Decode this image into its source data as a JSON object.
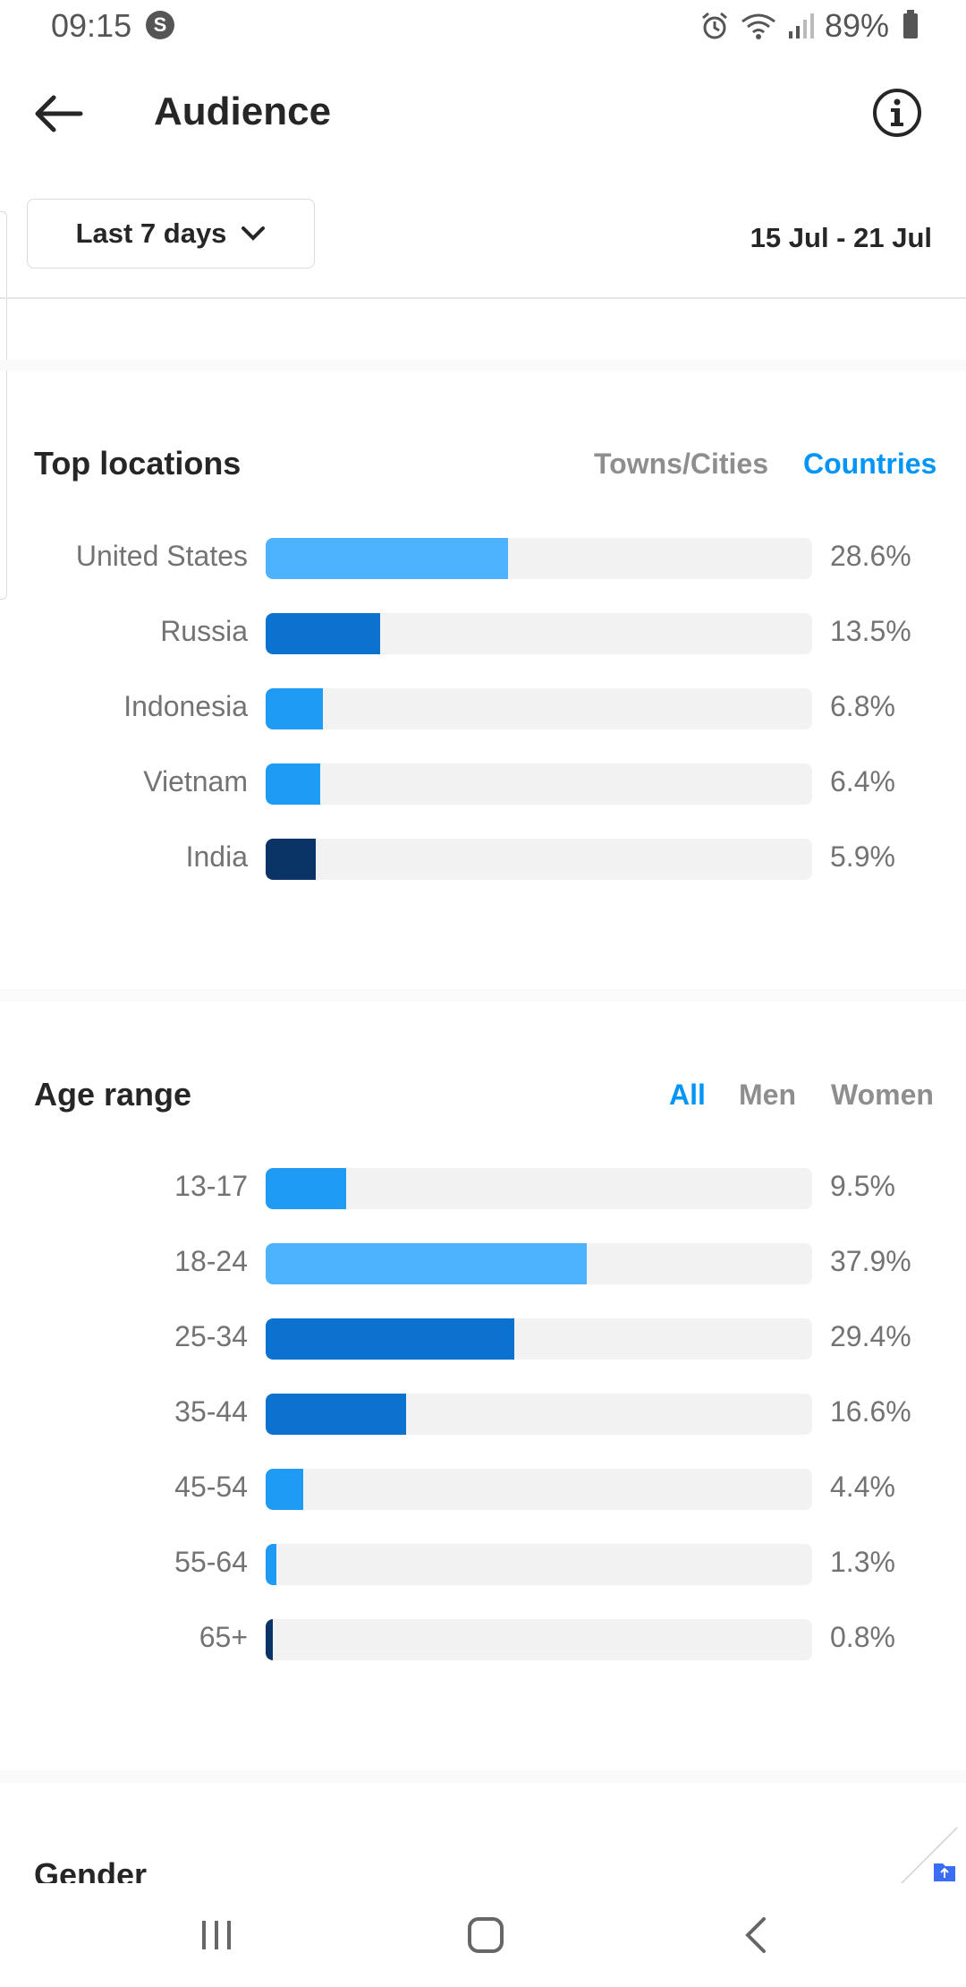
{
  "status_bar": {
    "time": "09:15",
    "battery": "89%",
    "icons": [
      "s-icon",
      "alarm-icon",
      "wifi-icon",
      "signal-icon",
      "battery-icon"
    ]
  },
  "header": {
    "title": "Audience",
    "back_icon": "arrow-left-icon",
    "info_icon": "info-icon"
  },
  "filter": {
    "period_label": "Last 7 days",
    "date_range": "15 Jul - 21 Jul"
  },
  "top_locations": {
    "title": "Top locations",
    "tabs": [
      {
        "label": "Towns/Cities",
        "active": false
      },
      {
        "label": "Countries",
        "active": true
      }
    ],
    "rows": [
      {
        "label": "United States",
        "value_text": "28.6%",
        "value": 28.6,
        "color": "#4db3ff"
      },
      {
        "label": "Russia",
        "value_text": "13.5%",
        "value": 13.5,
        "color": "#0c72cf"
      },
      {
        "label": "Indonesia",
        "value_text": "6.8%",
        "value": 6.8,
        "color": "#1e9bf5"
      },
      {
        "label": "Vietnam",
        "value_text": "6.4%",
        "value": 6.4,
        "color": "#1e9bf5"
      },
      {
        "label": "India",
        "value_text": "5.9%",
        "value": 5.9,
        "color": "#0a3466"
      }
    ]
  },
  "age_range": {
    "title": "Age range",
    "tabs": [
      {
        "label": "All",
        "active": true
      },
      {
        "label": "Men",
        "active": false
      },
      {
        "label": "Women",
        "active": false
      }
    ],
    "rows": [
      {
        "label": "13-17",
        "value_text": "9.5%",
        "value": 9.5,
        "color": "#1e9bf5"
      },
      {
        "label": "18-24",
        "value_text": "37.9%",
        "value": 37.9,
        "color": "#4db3ff"
      },
      {
        "label": "25-34",
        "value_text": "29.4%",
        "value": 29.4,
        "color": "#0c72cf"
      },
      {
        "label": "35-44",
        "value_text": "16.6%",
        "value": 16.6,
        "color": "#0c72cf"
      },
      {
        "label": "45-54",
        "value_text": "4.4%",
        "value": 4.4,
        "color": "#1e9bf5"
      },
      {
        "label": "55-64",
        "value_text": "1.3%",
        "value": 1.3,
        "color": "#1e9bf5"
      },
      {
        "label": "65+",
        "value_text": "0.8%",
        "value": 0.8,
        "color": "#0a3466"
      }
    ]
  },
  "gender": {
    "title": "Gender"
  },
  "nav_bar": {
    "icons": [
      "recent-apps-icon",
      "home-icon",
      "back-nav-icon"
    ]
  },
  "colors": {
    "accent": "#0095f6",
    "track": "#f2f2f2",
    "muted_text": "#737373"
  }
}
